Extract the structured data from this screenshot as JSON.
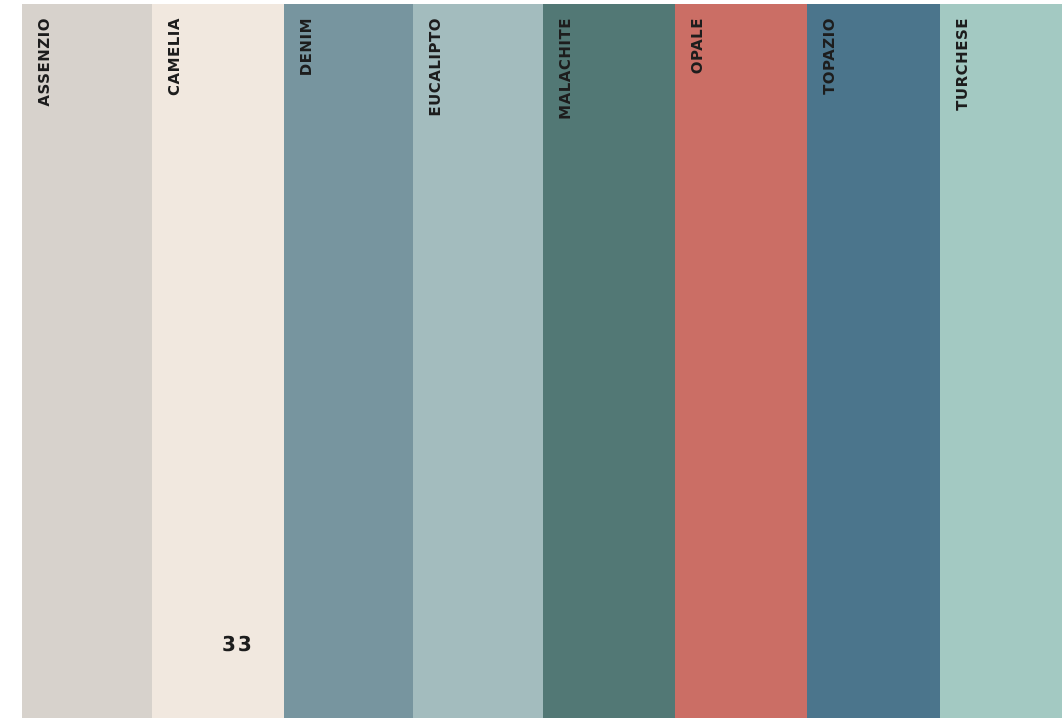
{
  "swatches": [
    {
      "name": "ASSENZIO",
      "color": "#d7d2cc"
    },
    {
      "name": "CAMELIA",
      "color": "#f1e8df"
    },
    {
      "name": "DENIM",
      "color": "#77959f"
    },
    {
      "name": "EUCALIPTO",
      "color": "#a3bcbe"
    },
    {
      "name": "MALACHITE",
      "color": "#527875"
    },
    {
      "name": "OPALE",
      "color": "#cb6e65"
    },
    {
      "name": "TOPAZIO",
      "color": "#4b758c"
    },
    {
      "name": "TURCHESE",
      "color": "#a3c9c2"
    }
  ],
  "page_number": "33"
}
